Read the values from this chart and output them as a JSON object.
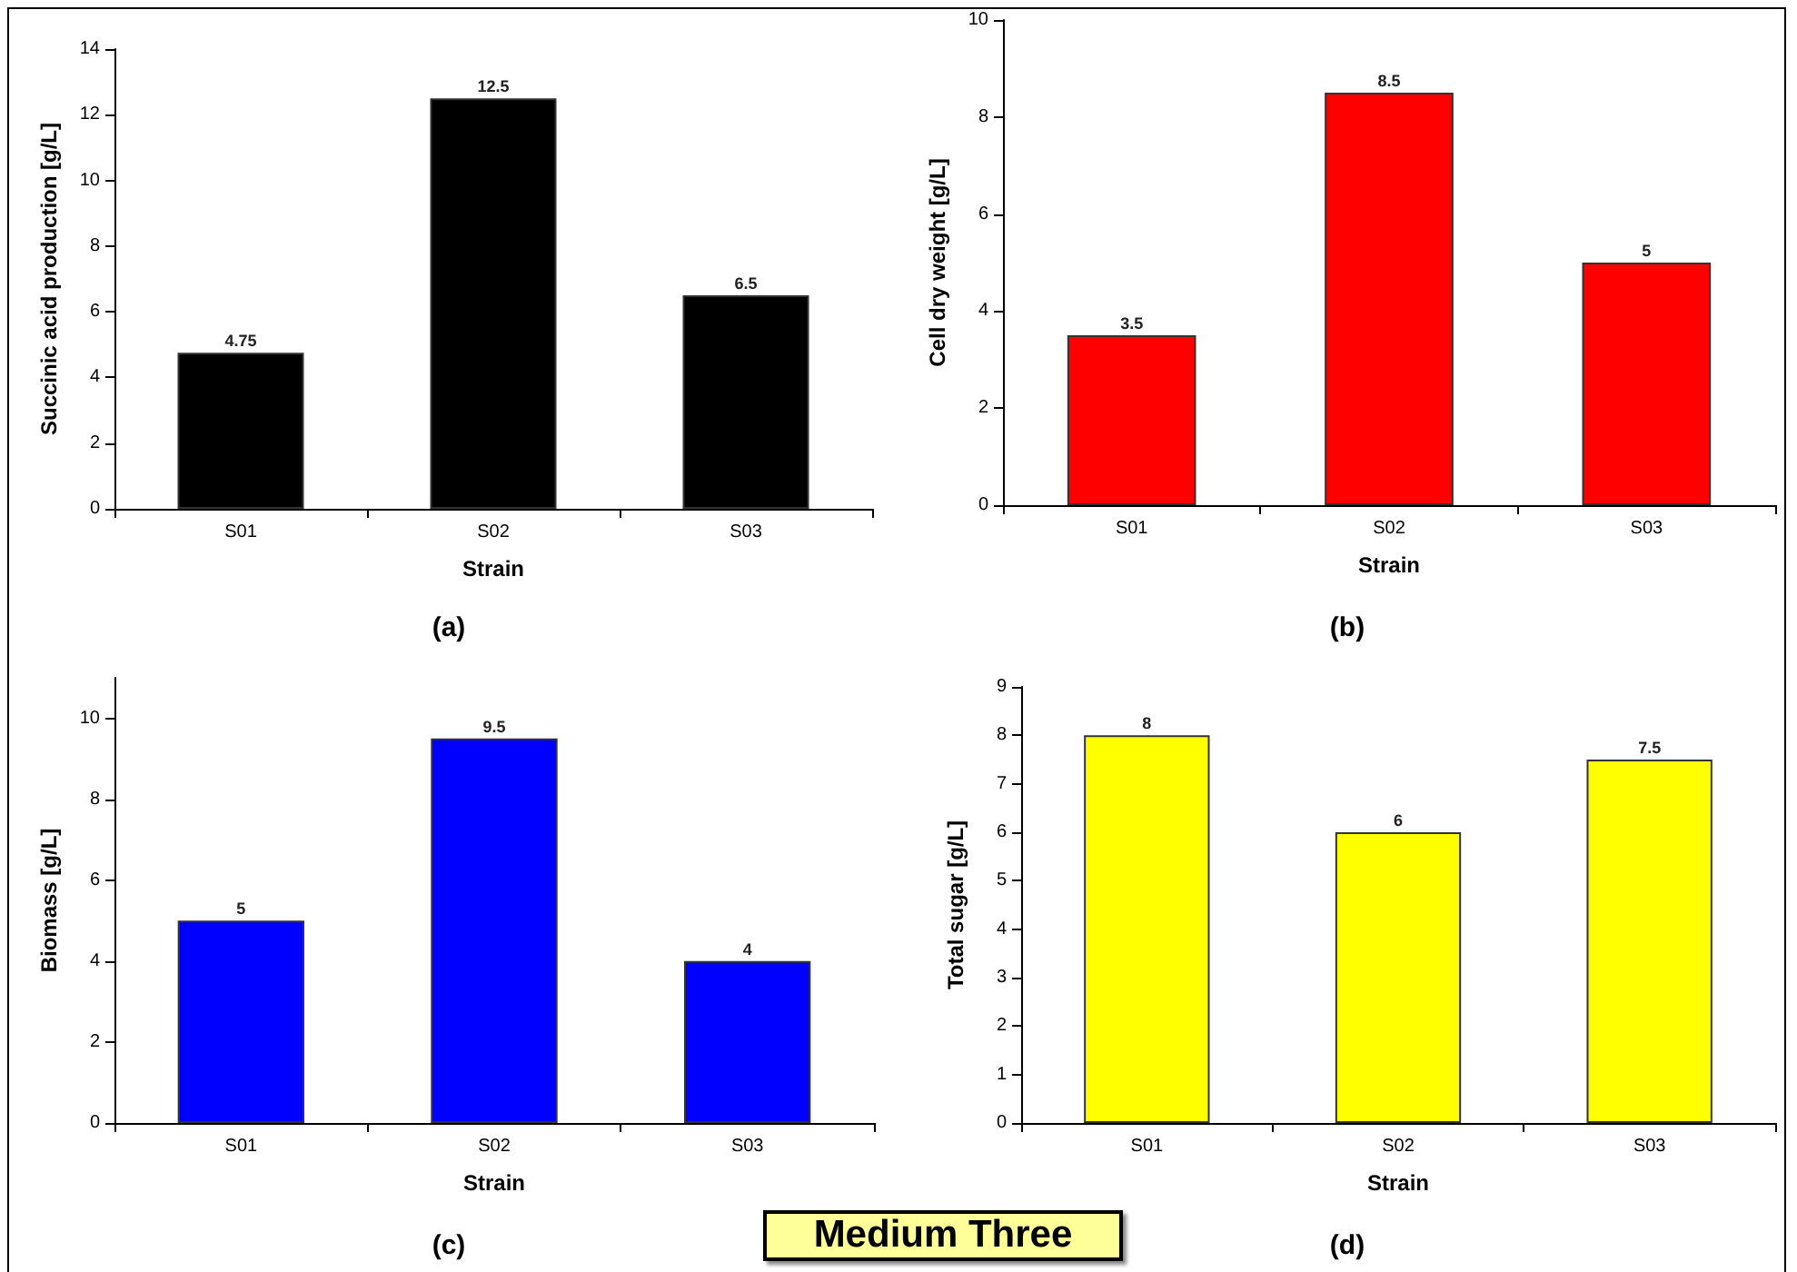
{
  "chart_data": [
    {
      "type": "bar",
      "title": "(a)",
      "xlabel": "Strain",
      "ylabel": "Succinic acid production [g/L]",
      "categories": [
        "S01",
        "S02",
        "S03"
      ],
      "values": [
        4.75,
        12.5,
        6.5
      ],
      "color": "#000000",
      "ylim": [
        0,
        14
      ],
      "yticks": [
        0,
        2,
        4,
        6,
        8,
        10,
        12,
        14
      ],
      "data_labels": true
    },
    {
      "type": "bar",
      "title": "(b)",
      "xlabel": "Strain",
      "ylabel": "Cell dry weight [g/L]",
      "categories": [
        "S01",
        "S02",
        "S03"
      ],
      "values": [
        3.5,
        8.5,
        5
      ],
      "color": "#ff0000",
      "ylim": [
        0,
        10
      ],
      "yticks": [
        0,
        2,
        4,
        6,
        8,
        10
      ],
      "data_labels": true
    },
    {
      "type": "bar",
      "title": "(c)",
      "xlabel": "Strain",
      "ylabel": "Biomass [g/L]",
      "categories": [
        "S01",
        "S02",
        "S03"
      ],
      "values": [
        5,
        9.5,
        4
      ],
      "color": "#0000ff",
      "ylim": [
        0,
        11
      ],
      "yticks": [
        0,
        2,
        4,
        6,
        8,
        10
      ],
      "data_labels": true
    },
    {
      "type": "bar",
      "title": "(d)",
      "xlabel": "Strain",
      "ylabel": "Total sugar [g/L]",
      "categories": [
        "S01",
        "S02",
        "S03"
      ],
      "values": [
        8,
        6,
        7.5
      ],
      "color": "#ffff00",
      "ylim": [
        0,
        9
      ],
      "yticks": [
        0,
        1,
        2,
        3,
        4,
        5,
        6,
        7,
        8,
        9
      ],
      "data_labels": true,
      "annotations": [
        "Medium Three"
      ]
    }
  ]
}
